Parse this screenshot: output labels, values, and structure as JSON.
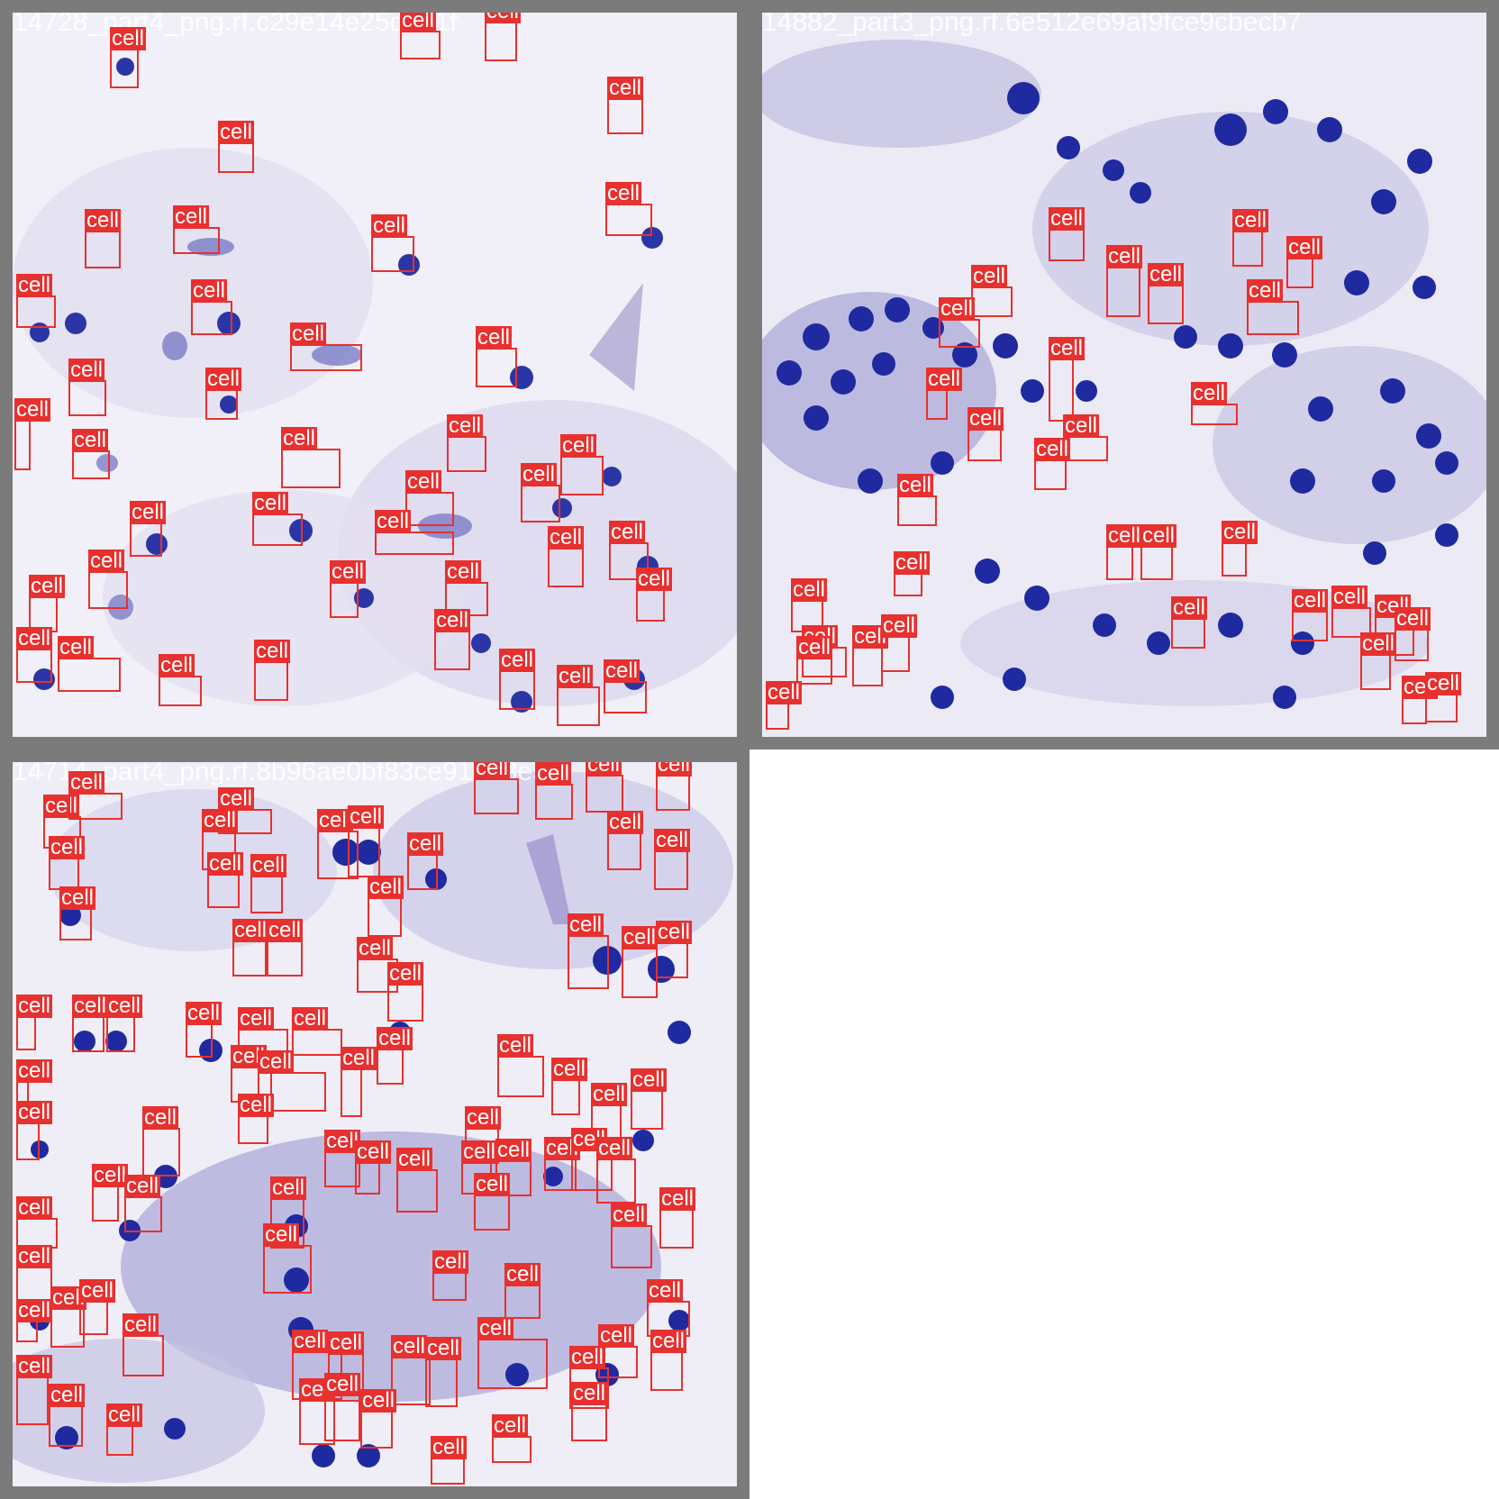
{
  "colors": {
    "frame": "#7b7b7b",
    "box": "#e8302e",
    "nucleus": "#1e2ba0",
    "tissue": "#eceaf6"
  },
  "label": "cell",
  "tiles": [
    {
      "name": "14728_part4_png.rf.c29e14e25d9a1f",
      "stain": "light"
    },
    {
      "name": "14882_part3_png.rf.6e512e69af9fce9cbecb7",
      "stain": "dense"
    },
    {
      "name": "14714_part4_png.rf.8b96ae0bf83ce91e13e5",
      "stain": "medium"
    }
  ]
}
